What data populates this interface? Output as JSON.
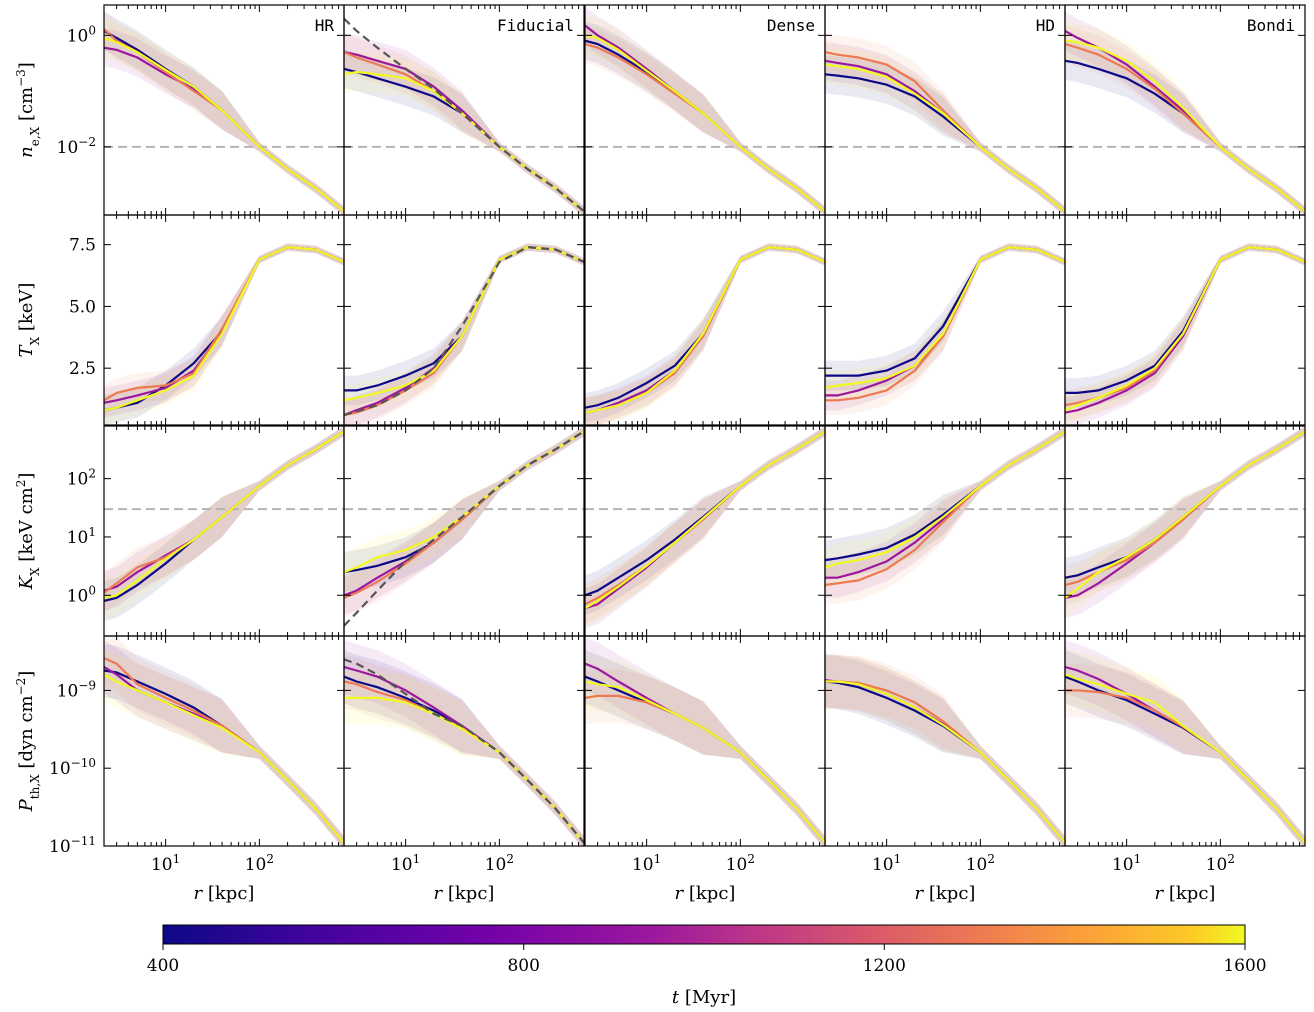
{
  "colors": {
    "time_400": "#0d0887",
    "time_800": "#9c179e",
    "time_1200": "#ed7953",
    "time_1600": "#f0f921",
    "reference_line": "#555555",
    "threshold_line": "#b4b4b4"
  },
  "panels": [
    "HR",
    "Fiducial",
    "Dense",
    "HD",
    "Bondi"
  ],
  "rows": [
    {
      "key": "ne",
      "ylabel": "n_e,X [cm^-3]",
      "yscale": "log",
      "ylim": [
        0.0006,
        3.5
      ],
      "ticks": [
        "10^0",
        "10^-2"
      ],
      "threshold": 0.01
    },
    {
      "key": "T",
      "ylabel": "T_X [keV]",
      "yscale": "linear",
      "ylim": [
        0.2,
        8.7
      ],
      "ticks": [
        "7.5",
        "5.0",
        "2.5"
      ]
    },
    {
      "key": "K",
      "ylabel": "K_X [keV cm^2]",
      "yscale": "log",
      "ylim": [
        0.2,
        800
      ],
      "ticks": [
        "10^2",
        "10^1",
        "10^0"
      ],
      "threshold": 30
    },
    {
      "key": "P",
      "ylabel": "P_th,X [dyn cm^-2]",
      "yscale": "log",
      "ylim": [
        1e-11,
        5e-09
      ],
      "ticks": [
        "10^-9",
        "10^-10",
        "10^-11"
      ]
    }
  ],
  "x_axis": {
    "label": "r [kpc]",
    "scale": "log",
    "xlim": [
      2.2,
      800
    ],
    "ticks": [
      "10^1",
      "10^2"
    ]
  },
  "colorbar": {
    "label": "t [Myr]",
    "ticks": [
      "400",
      "800",
      "1200",
      "1600"
    ],
    "range": [
      400,
      1600
    ]
  },
  "chart_data": {
    "type": "line",
    "description_units": {
      "x": "kpc",
      "ne": "cm^-3",
      "T": "keV",
      "K": "keV cm^2",
      "P": "dyn cm^-2"
    },
    "times": [
      400,
      800,
      1200,
      1600
    ],
    "x": [
      2.2,
      3,
      5,
      10,
      20,
      40,
      100,
      200,
      400,
      800
    ],
    "reference": {
      "panel": "Fiducial",
      "style": "dashed",
      "ne": [
        2.0,
        1.2,
        0.6,
        0.25,
        0.11,
        0.04,
        0.01,
        0.004,
        0.0018,
        0.0007
      ],
      "T": [
        0.6,
        0.75,
        1.0,
        1.6,
        2.5,
        4.2,
        6.8,
        7.4,
        7.3,
        6.8
      ],
      "K": [
        0.3,
        0.5,
        1.2,
        3.8,
        9,
        22,
        75,
        170,
        320,
        650
      ],
      "P": [
        2.5e-09,
        2.2e-09,
        1.6e-09,
        9e-10,
        5e-10,
        3.5e-10,
        1.6e-10,
        7e-11,
        3e-11,
        1.1e-11
      ]
    },
    "series": {
      "HR": {
        "ne": [
          [
            1.2,
            0.9,
            0.55,
            0.25,
            0.12,
            0.045,
            0.01,
            0.004,
            0.0018,
            0.0007
          ],
          [
            0.6,
            0.55,
            0.4,
            0.2,
            0.11,
            0.045,
            0.01,
            0.004,
            0.0018,
            0.0007
          ],
          [
            1.3,
            0.8,
            0.5,
            0.22,
            0.1,
            0.045,
            0.01,
            0.004,
            0.0018,
            0.0007
          ],
          [
            0.9,
            0.75,
            0.5,
            0.24,
            0.12,
            0.045,
            0.01,
            0.004,
            0.0018,
            0.0007
          ]
        ],
        "T": [
          [
            0.8,
            0.9,
            1.1,
            1.8,
            2.7,
            4.0,
            6.9,
            7.4,
            7.3,
            6.8
          ],
          [
            1.1,
            1.2,
            1.4,
            1.7,
            2.4,
            4.0,
            6.9,
            7.4,
            7.3,
            6.8
          ],
          [
            1.2,
            1.5,
            1.7,
            1.8,
            2.3,
            4.1,
            6.9,
            7.4,
            7.3,
            6.8
          ],
          [
            0.8,
            0.9,
            1.2,
            1.6,
            2.2,
            3.9,
            6.9,
            7.4,
            7.3,
            6.8
          ]
        ],
        "K": [
          [
            0.8,
            0.9,
            1.5,
            3.5,
            9,
            22,
            75,
            170,
            320,
            650
          ],
          [
            1.2,
            1.4,
            2.5,
            4.8,
            9,
            22,
            75,
            170,
            320,
            650
          ],
          [
            1.1,
            1.6,
            3,
            4.5,
            9,
            22,
            75,
            170,
            320,
            650
          ],
          [
            0.9,
            1.0,
            1.8,
            4.2,
            9,
            22,
            75,
            170,
            320,
            650
          ]
        ],
        "P": [
          [
            1.8e-09,
            1.7e-09,
            1.3e-09,
            9e-10,
            6e-10,
            3.5e-10,
            1.6e-10,
            7e-11,
            3e-11,
            1.1e-11
          ],
          [
            2e-09,
            1.6e-09,
            1e-09,
            7e-10,
            5e-10,
            3.5e-10,
            1.6e-10,
            7e-11,
            3e-11,
            1.1e-11
          ],
          [
            2.6e-09,
            2.2e-09,
            1.2e-09,
            8e-10,
            5.5e-10,
            3.5e-10,
            1.6e-10,
            7e-11,
            3e-11,
            1.1e-11
          ],
          [
            1.6e-09,
            1.3e-09,
            1e-09,
            7e-10,
            4.8e-10,
            3.3e-10,
            1.6e-10,
            7e-11,
            3e-11,
            1.1e-11
          ]
        ]
      },
      "Fiducial": {
        "ne": [
          [
            0.25,
            0.22,
            0.17,
            0.12,
            0.08,
            0.04,
            0.01,
            0.004,
            0.0018,
            0.0007
          ],
          [
            0.5,
            0.45,
            0.35,
            0.25,
            0.12,
            0.045,
            0.01,
            0.004,
            0.0018,
            0.0007
          ],
          [
            0.5,
            0.4,
            0.3,
            0.2,
            0.1,
            0.04,
            0.01,
            0.004,
            0.0018,
            0.0007
          ],
          [
            0.2,
            0.22,
            0.2,
            0.17,
            0.1,
            0.04,
            0.01,
            0.004,
            0.0018,
            0.0007
          ]
        ],
        "T": [
          [
            1.6,
            1.6,
            1.8,
            2.2,
            2.7,
            3.8,
            6.9,
            7.4,
            7.3,
            6.8
          ],
          [
            0.6,
            0.8,
            1.1,
            1.7,
            2.5,
            3.8,
            6.9,
            7.4,
            7.3,
            6.8
          ],
          [
            0.6,
            0.7,
            1.0,
            1.6,
            2.3,
            3.8,
            6.9,
            7.4,
            7.3,
            6.8
          ],
          [
            1.2,
            1.3,
            1.5,
            1.8,
            2.4,
            3.8,
            6.9,
            7.4,
            7.3,
            6.8
          ]
        ],
        "K": [
          [
            2.5,
            2.7,
            3.2,
            4.5,
            8,
            20,
            75,
            170,
            320,
            650
          ],
          [
            1.0,
            1.2,
            2.0,
            3.8,
            8,
            20,
            75,
            170,
            320,
            650
          ],
          [
            0.9,
            1.1,
            1.7,
            3.5,
            8,
            20,
            75,
            170,
            320,
            650
          ],
          [
            2.5,
            3.0,
            4.5,
            6,
            10,
            22,
            75,
            170,
            320,
            650
          ]
        ],
        "P": [
          [
            1.5e-09,
            1.3e-09,
            1.1e-09,
            8e-10,
            5.5e-10,
            3.5e-10,
            1.6e-10,
            7e-11,
            3e-11,
            1.1e-11
          ],
          [
            2e-09,
            1.8e-09,
            1.5e-09,
            1e-09,
            6e-10,
            3.5e-10,
            1.6e-10,
            7e-11,
            3e-11,
            1.1e-11
          ],
          [
            1.3e-09,
            1.2e-09,
            9.5e-10,
            7.5e-10,
            5e-10,
            3.3e-10,
            1.6e-10,
            7e-11,
            3e-11,
            1.1e-11
          ],
          [
            8e-10,
            8e-10,
            8e-10,
            7e-10,
            5e-10,
            3.2e-10,
            1.6e-10,
            7e-11,
            3e-11,
            1.1e-11
          ]
        ]
      },
      "Dense": {
        "ne": [
          [
            0.8,
            0.7,
            0.45,
            0.22,
            0.1,
            0.04,
            0.01,
            0.004,
            0.0018,
            0.0007
          ],
          [
            1.5,
            1.0,
            0.6,
            0.25,
            0.1,
            0.04,
            0.01,
            0.004,
            0.0018,
            0.0007
          ],
          [
            0.7,
            0.6,
            0.4,
            0.2,
            0.09,
            0.04,
            0.01,
            0.004,
            0.0018,
            0.0007
          ],
          [
            1.0,
            0.9,
            0.55,
            0.23,
            0.1,
            0.04,
            0.01,
            0.004,
            0.0018,
            0.0007
          ]
        ],
        "T": [
          [
            0.9,
            1.0,
            1.3,
            1.9,
            2.6,
            3.9,
            6.9,
            7.4,
            7.3,
            6.8
          ],
          [
            0.7,
            0.8,
            1.1,
            1.6,
            2.4,
            3.8,
            6.9,
            7.4,
            7.3,
            6.8
          ],
          [
            0.7,
            0.8,
            1.0,
            1.5,
            2.3,
            3.8,
            6.9,
            7.4,
            7.3,
            6.8
          ],
          [
            0.7,
            0.8,
            1.0,
            1.5,
            2.4,
            3.9,
            6.9,
            7.4,
            7.3,
            6.8
          ]
        ],
        "K": [
          [
            1.0,
            1.2,
            2.0,
            4.0,
            9,
            22,
            75,
            170,
            320,
            650
          ],
          [
            0.6,
            0.7,
            1.3,
            3.0,
            8,
            20,
            75,
            170,
            320,
            650
          ],
          [
            0.7,
            0.9,
            1.5,
            3.2,
            8,
            20,
            75,
            170,
            320,
            650
          ],
          [
            0.6,
            0.8,
            1.4,
            3.2,
            8,
            21,
            75,
            170,
            320,
            650
          ]
        ],
        "P": [
          [
            1.5e-09,
            1.3e-09,
            1e-09,
            7e-10,
            5e-10,
            3.3e-10,
            1.6e-10,
            7e-11,
            3e-11,
            1.1e-11
          ],
          [
            2.2e-09,
            1.9e-09,
            1.3e-09,
            8e-10,
            5e-10,
            3.3e-10,
            1.6e-10,
            7e-11,
            3e-11,
            1.1e-11
          ],
          [
            8e-10,
            8.5e-10,
            8.5e-10,
            7e-10,
            5e-10,
            3.3e-10,
            1.6e-10,
            7e-11,
            3e-11,
            1.1e-11
          ],
          [
            1.3e-09,
            1.2e-09,
            1.1e-09,
            7.5e-10,
            5e-10,
            3.3e-10,
            1.6e-10,
            7e-11,
            3e-11,
            1.1e-11
          ]
        ]
      },
      "HD": {
        "ne": [
          [
            0.2,
            0.19,
            0.17,
            0.13,
            0.08,
            0.035,
            0.01,
            0.004,
            0.0018,
            0.0007
          ],
          [
            0.35,
            0.32,
            0.28,
            0.2,
            0.1,
            0.04,
            0.01,
            0.004,
            0.0018,
            0.0007
          ],
          [
            0.5,
            0.45,
            0.4,
            0.3,
            0.15,
            0.045,
            0.01,
            0.004,
            0.0018,
            0.0007
          ],
          [
            0.3,
            0.28,
            0.25,
            0.18,
            0.09,
            0.04,
            0.01,
            0.004,
            0.0018,
            0.0007
          ]
        ],
        "T": [
          [
            2.2,
            2.2,
            2.2,
            2.4,
            2.9,
            4.2,
            6.9,
            7.4,
            7.3,
            6.8
          ],
          [
            1.4,
            1.4,
            1.6,
            2.0,
            2.6,
            3.8,
            6.9,
            7.4,
            7.3,
            6.8
          ],
          [
            1.2,
            1.2,
            1.3,
            1.6,
            2.4,
            3.8,
            6.9,
            7.4,
            7.3,
            6.8
          ],
          [
            1.7,
            1.8,
            1.9,
            2.1,
            2.6,
            3.9,
            6.9,
            7.4,
            7.3,
            6.8
          ]
        ],
        "K": [
          [
            4,
            4.3,
            5,
            6.5,
            11,
            24,
            75,
            170,
            320,
            650
          ],
          [
            2.0,
            2.0,
            2.5,
            3.8,
            8,
            20,
            75,
            170,
            320,
            650
          ],
          [
            1.5,
            1.6,
            1.8,
            2.8,
            6,
            18,
            75,
            170,
            320,
            650
          ],
          [
            3,
            3.5,
            4,
            5.5,
            10,
            22,
            75,
            170,
            320,
            650
          ]
        ],
        "P": [
          [
            1.3e-09,
            1.25e-09,
            1.1e-09,
            8e-10,
            5.5e-10,
            3.5e-10,
            1.6e-10,
            7e-11,
            3e-11,
            1.1e-11
          ],
          [
            1.35e-09,
            1.3e-09,
            1.2e-09,
            9e-10,
            6e-10,
            3.7e-10,
            1.6e-10,
            7e-11,
            3e-11,
            1.1e-11
          ],
          [
            1.3e-09,
            1.3e-09,
            1.25e-09,
            1e-09,
            7e-10,
            4e-10,
            1.6e-10,
            7e-11,
            3e-11,
            1.1e-11
          ],
          [
            1.3e-09,
            1.3e-09,
            1.2e-09,
            9e-10,
            6e-10,
            3.6e-10,
            1.6e-10,
            7e-11,
            3e-11,
            1.1e-11
          ]
        ]
      },
      "Bondi": {
        "ne": [
          [
            0.35,
            0.32,
            0.25,
            0.17,
            0.09,
            0.04,
            0.01,
            0.004,
            0.0018,
            0.0007
          ],
          [
            1.2,
            0.9,
            0.6,
            0.3,
            0.12,
            0.045,
            0.01,
            0.004,
            0.0018,
            0.0007
          ],
          [
            0.7,
            0.6,
            0.45,
            0.25,
            0.11,
            0.04,
            0.01,
            0.004,
            0.0018,
            0.0007
          ],
          [
            0.8,
            0.75,
            0.6,
            0.35,
            0.15,
            0.05,
            0.01,
            0.004,
            0.0018,
            0.0007
          ]
        ],
        "T": [
          [
            1.5,
            1.5,
            1.6,
            2.0,
            2.6,
            4.0,
            6.9,
            7.4,
            7.3,
            6.8
          ],
          [
            0.7,
            0.8,
            1.1,
            1.6,
            2.3,
            3.8,
            6.9,
            7.4,
            7.3,
            6.8
          ],
          [
            1.0,
            1.1,
            1.3,
            1.7,
            2.4,
            3.9,
            6.9,
            7.4,
            7.3,
            6.8
          ],
          [
            0.8,
            1.0,
            1.3,
            1.8,
            2.5,
            3.9,
            6.9,
            7.4,
            7.3,
            6.8
          ]
        ],
        "K": [
          [
            2.0,
            2.2,
            3.0,
            4.5,
            9,
            22,
            75,
            170,
            320,
            650
          ],
          [
            0.9,
            1.0,
            1.6,
            3.5,
            8,
            20,
            75,
            170,
            320,
            650
          ],
          [
            1.5,
            1.7,
            2.5,
            4.0,
            8,
            20,
            75,
            170,
            320,
            650
          ],
          [
            0.9,
            1.3,
            2.5,
            4.5,
            9,
            22,
            75,
            170,
            320,
            650
          ]
        ],
        "P": [
          [
            1.5e-09,
            1.3e-09,
            1e-09,
            7.5e-10,
            5e-10,
            3.3e-10,
            1.6e-10,
            7e-11,
            3e-11,
            1.1e-11
          ],
          [
            2e-09,
            1.8e-09,
            1.4e-09,
            9e-10,
            5.5e-10,
            3.4e-10,
            1.6e-10,
            7e-11,
            3e-11,
            1.1e-11
          ],
          [
            1e-09,
            1e-09,
            9.5e-10,
            8e-10,
            5.5e-10,
            3.4e-10,
            1.6e-10,
            7e-11,
            3e-11,
            1.1e-11
          ],
          [
            1.6e-09,
            1.4e-09,
            1.2e-09,
            9e-10,
            7e-10,
            3.5e-10,
            1.6e-10,
            7e-11,
            3e-11,
            1.1e-11
          ]
        ]
      }
    }
  }
}
